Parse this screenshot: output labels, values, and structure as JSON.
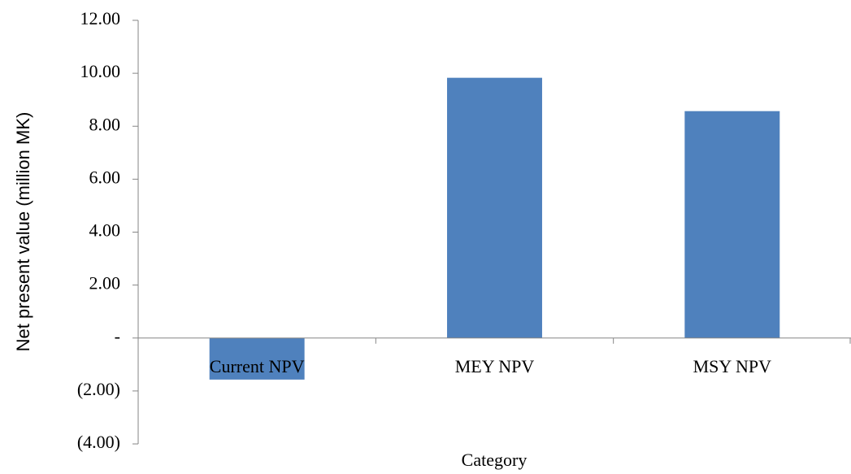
{
  "chart_data": {
    "type": "bar",
    "categories": [
      "Current NPV",
      "MEY NPV",
      "MSY NPV"
    ],
    "values": [
      -1.57,
      9.83,
      8.57
    ],
    "color": "#4f81bd",
    "x_label": "Category",
    "y_label": "Net present value (million MK)",
    "ylim": [
      -4,
      12
    ],
    "yticks": [
      {
        "value": -4,
        "label": "(4.00)"
      },
      {
        "value": -2,
        "label": "(2.00)"
      },
      {
        "value": 0,
        "label": "-"
      },
      {
        "value": 2,
        "label": "2.00"
      },
      {
        "value": 4,
        "label": "4.00"
      },
      {
        "value": 6,
        "label": "6.00"
      },
      {
        "value": 8,
        "label": "8.00"
      },
      {
        "value": 10,
        "label": "10.00"
      },
      {
        "value": 12,
        "label": "12.00"
      }
    ],
    "grid": false
  }
}
